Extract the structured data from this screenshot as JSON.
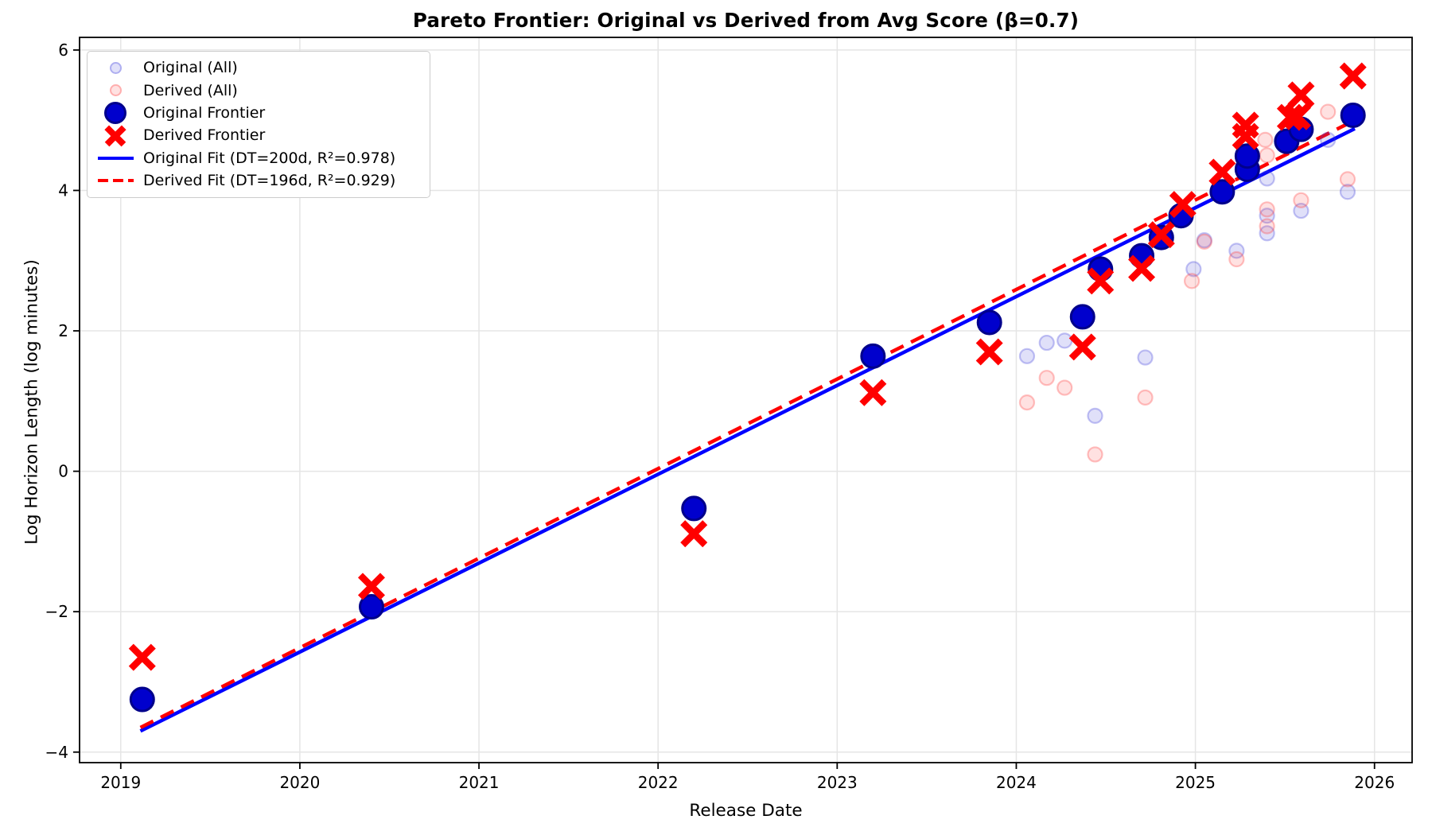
{
  "chart_data": {
    "type": "scatter",
    "title": "Pareto Frontier: Original vs Derived from Avg Score (β=0.7)",
    "xlabel": "Release Date",
    "ylabel": "Log Horizon Length (log minutes)",
    "xlim": [
      2018.77,
      2026.21
    ],
    "ylim": [
      -4.15,
      6.18
    ],
    "x_ticks": [
      2019,
      2020,
      2021,
      2022,
      2023,
      2024,
      2025,
      2026
    ],
    "x_tick_labels": [
      "2019",
      "2020",
      "2021",
      "2022",
      "2023",
      "2024",
      "2025",
      "2026"
    ],
    "y_ticks": [
      -4,
      -2,
      0,
      2,
      4,
      6
    ],
    "y_tick_labels": [
      "−4",
      "−2",
      "0",
      "2",
      "4",
      "6"
    ],
    "grid": true,
    "legend_position": "upper left",
    "series": [
      {
        "name": "Original (All)",
        "type": "scatter",
        "marker": "circle",
        "size": 9,
        "fill": "faint_blue_fill",
        "edge": "faint_blue_edge",
        "edge_width": 2.2,
        "z": 2,
        "points": [
          [
            2024.06,
            1.64
          ],
          [
            2024.17,
            1.83
          ],
          [
            2024.27,
            1.86
          ],
          [
            2024.44,
            0.79
          ],
          [
            2024.72,
            1.62
          ],
          [
            2024.99,
            2.88
          ],
          [
            2025.05,
            3.29
          ],
          [
            2025.23,
            3.14
          ],
          [
            2025.4,
            4.17
          ],
          [
            2025.4,
            3.64
          ],
          [
            2025.4,
            3.39
          ],
          [
            2025.59,
            3.71
          ],
          [
            2025.74,
            4.72
          ],
          [
            2025.85,
            3.98
          ]
        ]
      },
      {
        "name": "Derived (All)",
        "type": "scatter",
        "marker": "circle",
        "size": 9,
        "fill": "faint_pink_fill",
        "edge": "faint_pink_edge",
        "edge_width": 2.2,
        "z": 2,
        "points": [
          [
            2024.06,
            0.98
          ],
          [
            2024.17,
            1.33
          ],
          [
            2024.27,
            1.19
          ],
          [
            2024.44,
            0.24
          ],
          [
            2024.72,
            1.05
          ],
          [
            2024.98,
            2.71
          ],
          [
            2025.05,
            3.27
          ],
          [
            2025.23,
            3.02
          ],
          [
            2025.39,
            4.72
          ],
          [
            2025.4,
            4.5
          ],
          [
            2025.4,
            3.73
          ],
          [
            2025.4,
            3.49
          ],
          [
            2025.59,
            3.86
          ],
          [
            2025.74,
            5.12
          ],
          [
            2025.85,
            4.16
          ]
        ]
      },
      {
        "name": "Original Frontier",
        "type": "scatter",
        "marker": "circle",
        "size": 14.5,
        "fill": "frontier_blue_fill",
        "edge": "frontier_blue_edge",
        "edge_width": 3,
        "z": 3,
        "points": [
          [
            2019.12,
            -3.25
          ],
          [
            2020.4,
            -1.93
          ],
          [
            2022.2,
            -0.53
          ],
          [
            2023.2,
            1.64
          ],
          [
            2023.85,
            2.12
          ],
          [
            2024.37,
            2.2
          ],
          [
            2024.47,
            2.88
          ],
          [
            2024.7,
            3.07
          ],
          [
            2024.81,
            3.33
          ],
          [
            2024.92,
            3.64
          ],
          [
            2025.15,
            3.98
          ],
          [
            2025.29,
            4.3
          ],
          [
            2025.29,
            4.49
          ],
          [
            2025.51,
            4.7
          ],
          [
            2025.59,
            4.87
          ],
          [
            2025.88,
            5.07
          ]
        ]
      },
      {
        "name": "Derived Frontier",
        "type": "scatter",
        "marker": "x",
        "size": 14,
        "stroke": "derived_red",
        "stroke_width": 8.5,
        "z": 4,
        "points": [
          [
            2019.12,
            -2.65
          ],
          [
            2020.4,
            -1.64
          ],
          [
            2022.2,
            -0.89
          ],
          [
            2023.2,
            1.12
          ],
          [
            2023.85,
            1.7
          ],
          [
            2024.37,
            1.77
          ],
          [
            2024.47,
            2.71
          ],
          [
            2024.7,
            2.89
          ],
          [
            2024.81,
            3.37
          ],
          [
            2024.93,
            3.8
          ],
          [
            2025.15,
            4.26
          ],
          [
            2025.28,
            4.77
          ],
          [
            2025.28,
            4.93
          ],
          [
            2025.53,
            5.04
          ],
          [
            2025.57,
            5.05
          ],
          [
            2025.59,
            5.36
          ],
          [
            2025.88,
            5.63
          ]
        ]
      },
      {
        "name": "Original Fit (DT=200d, R²=0.978)",
        "type": "line",
        "dash": null,
        "stroke": "fit_blue",
        "stroke_width": 4.5,
        "z": 1,
        "points": [
          [
            2019.11,
            -3.7
          ],
          [
            2025.89,
            4.88
          ]
        ]
      },
      {
        "name": "Derived Fit (DT=196d, R²=0.929)",
        "type": "line",
        "dash": [
          18,
          10.5
        ],
        "stroke": "fit_red",
        "stroke_width": 4.5,
        "z": 1,
        "points": [
          [
            2019.11,
            -3.65
          ],
          [
            2025.89,
            5.0
          ]
        ]
      }
    ]
  },
  "colors": {
    "frontier_blue_fill": "#0000cd",
    "frontier_blue_edge": "#00008b",
    "derived_red": "#ff0000",
    "fit_blue": "#0000ff",
    "fit_red": "#ff0000",
    "faint_blue_fill": "rgba(60,60,220,0.16)",
    "faint_blue_edge": "rgba(60,60,220,0.30)",
    "faint_pink_fill": "rgba(255,70,70,0.16)",
    "faint_pink_edge": "rgba(255,70,70,0.33)",
    "grid": "#e5e5e5",
    "spine": "#000000",
    "background": "#ffffff"
  }
}
